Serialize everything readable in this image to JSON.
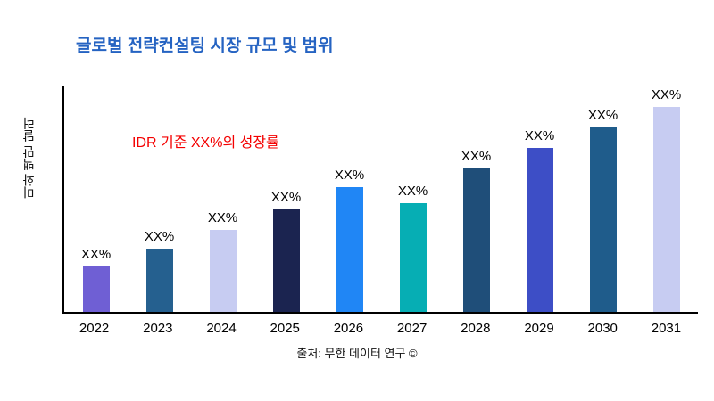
{
  "chart_data": {
    "type": "bar",
    "title": "글로벌 전략컨설팅 시장 규모 및 범위",
    "ylabel": "미화 백만 달러",
    "annotation": "IDR 기준 XX%의 성장률",
    "annotation_color": "#f40000",
    "title_color": "#2563c2",
    "source": "출처: 무한 데이터 연구 ©",
    "categories": [
      "2022",
      "2023",
      "2024",
      "2025",
      "2026",
      "2027",
      "2028",
      "2029",
      "2030",
      "2031"
    ],
    "values": [
      22,
      31,
      40,
      50,
      61,
      53,
      70,
      80,
      90,
      100
    ],
    "ylim": [
      0,
      110
    ],
    "bar_labels": [
      "XX%",
      "XX%",
      "XX%",
      "XX%",
      "XX%",
      "XX%",
      "XX%",
      "XX%",
      "XX%",
      "XX%"
    ],
    "bar_colors": [
      "#6f5fd4",
      "#25608f",
      "#c7ccf2",
      "#1b2450",
      "#2086f5",
      "#06aeb4",
      "#1f4e79",
      "#3d4ec6",
      "#1f5c8b",
      "#c7ccf2"
    ],
    "grid": false,
    "legend": "none"
  }
}
